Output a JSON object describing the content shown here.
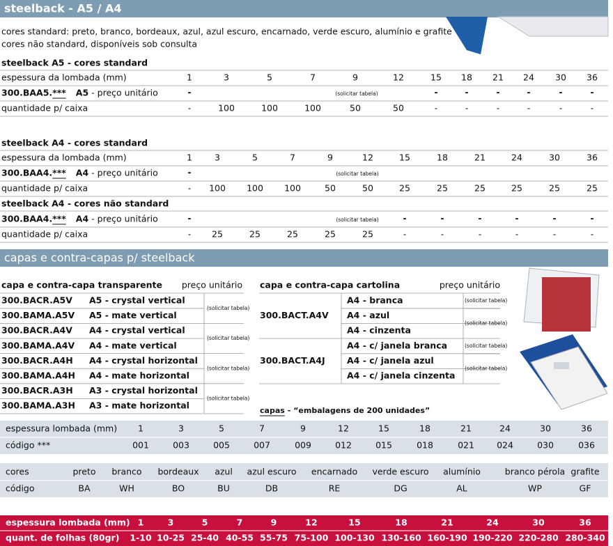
{
  "header": {
    "title": "steelback - A5 / A4"
  },
  "intro": [
    "cores standard: preto, branco, bordeaux, azul, azul escuro, encarnado, verde escuro, alumínio e grafite",
    "cores não standard, disponíveis sob consulta"
  ],
  "sections": [
    {
      "title": "steelback A5 - cores standard",
      "thickness": {
        "label": "espessura da lombada (mm)",
        "values": [
          "1",
          "3",
          "5",
          "7",
          "9",
          "12",
          "15",
          "18",
          "21",
          "24",
          "30",
          "36"
        ]
      },
      "price": {
        "code": "300.BAA5.",
        "variant": "***",
        "size": "A5",
        "text": "- preço unitário",
        "first": "-",
        "note": "(solicitar tabela)",
        "rest": [
          "-",
          "-",
          "-",
          "-",
          "-",
          "-"
        ]
      },
      "quantity": {
        "label": "quantidade p/ caixa",
        "values": [
          "-",
          "100",
          "100",
          "100",
          "50",
          "50",
          "-",
          "-",
          "-",
          "-",
          "-",
          "-"
        ]
      }
    },
    {
      "title": "steelback A4 - cores standard",
      "thickness": {
        "label": "espessura da lombada (mm)",
        "values": [
          "1",
          "3",
          "5",
          "7",
          "9",
          "12",
          "15",
          "18",
          "21",
          "24",
          "30",
          "36"
        ]
      },
      "price": {
        "code": "300.BAA4.",
        "variant": "***",
        "size": "A4",
        "text": "- preço unitário",
        "first": "-",
        "note": "(solicitar tabela)"
      },
      "quantity": {
        "label": "quantidade p/ caixa",
        "values": [
          "-",
          "100",
          "100",
          "100",
          "50",
          "50",
          "25",
          "25",
          "25",
          "25",
          "25",
          "25"
        ]
      }
    },
    {
      "title": "steelback A4 - cores não standard",
      "price": {
        "code": "300.BAA4.",
        "variant": "***",
        "size": "A4",
        "text": "- preço unitário",
        "first": "-",
        "note": "(solicitar tabela)",
        "rest": [
          "-",
          "-",
          "-",
          "-",
          "-",
          "-"
        ]
      },
      "quantity": {
        "label": "quantidade p/ caixa",
        "values": [
          "-",
          "25",
          "25",
          "25",
          "25",
          "25",
          "-",
          "-",
          "-",
          "-",
          "-",
          "-"
        ]
      }
    }
  ],
  "capas": {
    "title": "capas e contra-capas p/ steelback",
    "transparent": {
      "title": "capa e contra-capa transparente",
      "price_label": "preço unitário",
      "rows": [
        [
          "300.BACR.A5V",
          "A5 - crystal  vertical"
        ],
        [
          "300.BAMA.A5V",
          "A5 - mate vertical"
        ],
        [
          "300.BACR.A4V",
          "A4 - crystal vertical"
        ],
        [
          "300.BAMA.A4V",
          "A4 - mate vertical"
        ],
        [
          "300.BACR.A4H",
          "A4 - crystal horizontal"
        ],
        [
          "300.BAMA.A4H",
          "A4 - mate horizontal"
        ],
        [
          "300.BACR.A3H",
          "A3 - crystal horizontal"
        ],
        [
          "300.BAMA.A3H",
          "A3 - mate horizontal"
        ]
      ],
      "notes": [
        "(solicitar tabela)",
        "(solicitar tabela)",
        "(solicitar tabela)",
        "(solicitar tabela)"
      ]
    },
    "cardboard": {
      "title": "capa e contra-capa cartolina",
      "price_label": "preço unitário",
      "groups": [
        {
          "code": "300.BACT.A4V",
          "rows": [
            "A4 - branca",
            "A4 - azul",
            "A4 - cinzenta"
          ],
          "notes": [
            "(solicitar tabela)",
            "(solicitar tabela)"
          ]
        },
        {
          "code": "300.BACT.A4J",
          "rows": [
            "A4 - c/ janela branca",
            "A4 - c/ janela azul",
            "A4 - c/ janela cinzenta"
          ],
          "notes": [
            "(solicitar tabela)",
            "(solicitar tabela)"
          ]
        }
      ]
    },
    "footnote": {
      "label": "capas",
      "text": "- “embalagens de 200 unidades”"
    }
  },
  "codes": {
    "rows": [
      {
        "label": "espessura lombada (mm)",
        "values": [
          "1",
          "3",
          "5",
          "7",
          "9",
          "12",
          "15",
          "18",
          "21",
          "24",
          "30",
          "36"
        ]
      },
      {
        "label": "código ***",
        "values": [
          "001",
          "003",
          "005",
          "007",
          "009",
          "012",
          "015",
          "018",
          "021",
          "024",
          "030",
          "036"
        ]
      }
    ]
  },
  "colors": {
    "rows": [
      {
        "label": "cores",
        "values": [
          "preto",
          "branco",
          "bordeaux",
          "azul",
          "azul escuro",
          "encarnado",
          "verde escuro",
          "alumínio",
          "branco pérola",
          "grafite"
        ]
      },
      {
        "label": "código",
        "values": [
          "BA",
          "WH",
          "BO",
          "BU",
          "DB",
          "RE",
          "DG",
          "AL",
          "WP",
          "GF"
        ]
      }
    ]
  },
  "sheets": {
    "rows": [
      {
        "label": "espessura lombada (mm)",
        "values": [
          "1",
          "3",
          "5",
          "7",
          "9",
          "12",
          "15",
          "18",
          "21",
          "24",
          "30",
          "36"
        ]
      },
      {
        "label": "quant. de folhas (80gr)",
        "values": [
          "1-10",
          "10-25",
          "25-40",
          "40-55",
          "55-75",
          "75-100",
          "100-130",
          "130-160",
          "160-190",
          "190-220",
          "220-280",
          "280-340"
        ]
      }
    ]
  }
}
